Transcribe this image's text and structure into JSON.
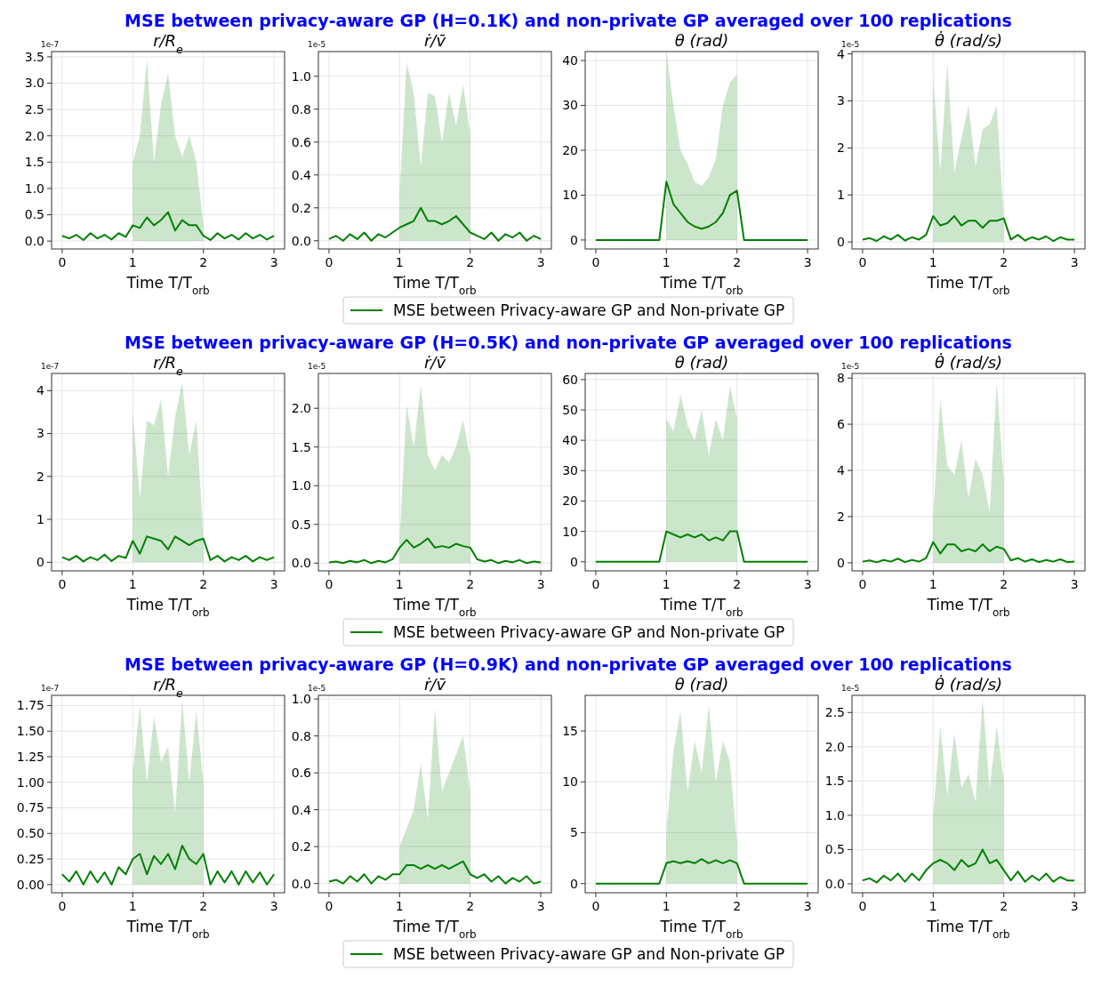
{
  "chart_data": [
    {
      "type": "other",
      "title": "MSE between privacy-aware GP (H=0.1K) and non-private GP averaged over 100 replications"
    },
    {
      "type": "line",
      "title": "r/R$_{e}$",
      "xlabel": "Time T/T$_{orb}$",
      "annotations": [
        "1e-7"
      ],
      "grid": true,
      "xlim": [
        -0.15,
        3.15
      ],
      "xticks": [
        0,
        1,
        2,
        3
      ],
      "ylim": [
        -0.15,
        3.6
      ],
      "yticks": [
        {
          "value": 0,
          "label": "0.0"
        },
        0.5,
        {
          "value": 1,
          "label": "1.0"
        },
        1.5,
        {
          "value": 2,
          "label": "2.0"
        },
        2.5,
        {
          "value": 3,
          "label": "3.0"
        },
        3.5
      ],
      "x": [
        0,
        0.1,
        0.2,
        0.3,
        0.4,
        0.5,
        0.6,
        0.7,
        0.8,
        0.9,
        1,
        1.1,
        1.2,
        1.3,
        1.4,
        1.5,
        1.6,
        1.7,
        1.8,
        1.9,
        2,
        2.1,
        2.2,
        2.3,
        2.4,
        2.5,
        2.6,
        2.7,
        2.8,
        2.9,
        3
      ],
      "series": [
        {
          "color": "#008000",
          "values": [
            0.1,
            0.05,
            0.12,
            0.02,
            0.15,
            0.05,
            0.12,
            0.03,
            0.15,
            0.08,
            0.3,
            0.25,
            0.45,
            0.3,
            0.4,
            0.55,
            0.2,
            0.4,
            0.3,
            0.3,
            0.1,
            0.02,
            0.15,
            0.05,
            0.12,
            0.03,
            0.15,
            0.05,
            0.12,
            0.03,
            0.1
          ],
          "lower": [
            null,
            null,
            null,
            null,
            null,
            null,
            null,
            null,
            null,
            null,
            0,
            0,
            0,
            0,
            0,
            0,
            0,
            0,
            0,
            0,
            0,
            null,
            null,
            null,
            null,
            null,
            null,
            null,
            null,
            null,
            null
          ],
          "upper": [
            null,
            null,
            null,
            null,
            null,
            null,
            null,
            null,
            null,
            null,
            1.5,
            2.0,
            3.45,
            1.5,
            2.6,
            3.2,
            2.0,
            1.6,
            2.0,
            1.5,
            0.3,
            null,
            null,
            null,
            null,
            null,
            null,
            null,
            null,
            null,
            null
          ]
        }
      ]
    },
    {
      "type": "line",
      "title": "ṙ/v̄",
      "xlabel": "Time T/T$_{orb}$",
      "annotations": [
        "1e-5"
      ],
      "grid": true,
      "legend": "bottom",
      "xlim": [
        -0.15,
        3.15
      ],
      "xticks": [
        0,
        1,
        2,
        3
      ],
      "ylim": [
        -0.05,
        1.15
      ],
      "yticks": [
        {
          "value": 0,
          "label": "0.0"
        },
        0.2,
        0.4,
        0.6,
        0.8,
        {
          "value": 1,
          "label": "1.0"
        }
      ],
      "x": [
        0,
        0.1,
        0.2,
        0.3,
        0.4,
        0.5,
        0.6,
        0.7,
        0.8,
        0.9,
        1,
        1.1,
        1.2,
        1.3,
        1.4,
        1.5,
        1.6,
        1.7,
        1.8,
        1.9,
        2,
        2.1,
        2.2,
        2.3,
        2.4,
        2.5,
        2.6,
        2.7,
        2.8,
        2.9,
        3
      ],
      "series": [
        {
          "name": "MSE between Privacy-aware GP and Non-private GP",
          "color": "#008000",
          "values": [
            0.01,
            0.03,
            0.0,
            0.04,
            0.01,
            0.05,
            0.0,
            0.04,
            0.02,
            0.05,
            0.08,
            0.1,
            0.12,
            0.2,
            0.12,
            0.12,
            0.1,
            0.12,
            0.15,
            0.1,
            0.05,
            0.03,
            0.01,
            0.05,
            0.0,
            0.04,
            0.02,
            0.05,
            0.0,
            0.03,
            0.01
          ],
          "lower": [
            null,
            null,
            null,
            null,
            null,
            null,
            null,
            null,
            null,
            null,
            0,
            0,
            0,
            0,
            0,
            0,
            0,
            0,
            0,
            0,
            0,
            null,
            null,
            null,
            null,
            null,
            null,
            null,
            null,
            null,
            null
          ],
          "upper": [
            null,
            null,
            null,
            null,
            null,
            null,
            null,
            null,
            null,
            null,
            0.3,
            1.08,
            0.9,
            0.45,
            0.9,
            0.88,
            0.6,
            0.9,
            0.7,
            0.95,
            0.65,
            null,
            null,
            null,
            null,
            null,
            null,
            null,
            null,
            null,
            null
          ]
        }
      ]
    },
    {
      "type": "line",
      "title": "θ (rad)",
      "xlabel": "Time T/T$_{orb}$",
      "grid": true,
      "xlim": [
        -0.15,
        3.15
      ],
      "xticks": [
        0,
        1,
        2,
        3
      ],
      "ylim": [
        -2,
        42
      ],
      "yticks": [
        0,
        10,
        20,
        30,
        40
      ],
      "x": [
        0,
        0.1,
        0.2,
        0.3,
        0.4,
        0.5,
        0.6,
        0.7,
        0.8,
        0.9,
        1,
        1.1,
        1.2,
        1.3,
        1.4,
        1.5,
        1.6,
        1.7,
        1.8,
        1.9,
        2,
        2.1,
        2.2,
        2.3,
        2.4,
        2.5,
        2.6,
        2.7,
        2.8,
        2.9,
        3
      ],
      "series": [
        {
          "color": "#008000",
          "values": [
            0,
            0,
            0,
            0,
            0,
            0,
            0,
            0,
            0,
            0,
            13,
            8,
            6,
            4,
            3,
            2.5,
            3,
            4,
            6,
            10,
            11,
            0,
            0,
            0,
            0,
            0,
            0,
            0,
            0,
            0,
            0
          ],
          "lower": [
            null,
            null,
            null,
            null,
            null,
            null,
            null,
            null,
            null,
            null,
            0,
            0,
            0,
            0,
            0,
            0,
            0,
            0,
            0,
            0,
            0,
            null,
            null,
            null,
            null,
            null,
            null,
            null,
            null,
            null,
            null
          ],
          "upper": [
            null,
            null,
            null,
            null,
            null,
            null,
            null,
            null,
            null,
            null,
            42,
            30,
            20,
            17,
            13,
            12,
            14,
            18,
            30,
            35,
            37,
            null,
            null,
            null,
            null,
            null,
            null,
            null,
            null,
            null,
            null
          ]
        }
      ]
    },
    {
      "type": "line",
      "title": "θ̇ (rad/s)",
      "xlabel": "Time T/T$_{orb}$",
      "annotations": [
        "1e-5"
      ],
      "grid": true,
      "xlim": [
        -0.15,
        3.15
      ],
      "xticks": [
        0,
        1,
        2,
        3
      ],
      "ylim": [
        -0.15,
        4.05
      ],
      "yticks": [
        0,
        1,
        2,
        3,
        4
      ],
      "x": [
        0,
        0.1,
        0.2,
        0.3,
        0.4,
        0.5,
        0.6,
        0.7,
        0.8,
        0.9,
        1,
        1.1,
        1.2,
        1.3,
        1.4,
        1.5,
        1.6,
        1.7,
        1.8,
        1.9,
        2,
        2.1,
        2.2,
        2.3,
        2.4,
        2.5,
        2.6,
        2.7,
        2.8,
        2.9,
        3
      ],
      "series": [
        {
          "color": "#008000",
          "values": [
            0.05,
            0.08,
            0.02,
            0.12,
            0.05,
            0.15,
            0.03,
            0.1,
            0.05,
            0.15,
            0.55,
            0.35,
            0.4,
            0.55,
            0.35,
            0.45,
            0.45,
            0.3,
            0.45,
            0.45,
            0.5,
            0.05,
            0.15,
            0.03,
            0.1,
            0.05,
            0.12,
            0.02,
            0.1,
            0.05,
            0.05
          ],
          "lower": [
            null,
            null,
            null,
            null,
            null,
            null,
            null,
            null,
            null,
            null,
            0,
            0,
            0,
            0,
            0,
            0,
            0,
            0,
            0,
            0,
            0,
            null,
            null,
            null,
            null,
            null,
            null,
            null,
            null,
            null,
            null
          ],
          "upper": [
            null,
            null,
            null,
            null,
            null,
            null,
            null,
            null,
            null,
            null,
            3.5,
            1.5,
            3.8,
            1.5,
            2.2,
            2.9,
            1.6,
            2.4,
            2.5,
            2.9,
            0.5,
            null,
            null,
            null,
            null,
            null,
            null,
            null,
            null,
            null,
            null
          ]
        }
      ]
    },
    {
      "type": "other",
      "title": "MSE between privacy-aware GP (H=0.5K) and non-private GP averaged over 100 replications"
    },
    {
      "type": "line",
      "title": "r/R$_{e}$",
      "xlabel": "Time T/T$_{orb}$",
      "annotations": [
        "1e-7"
      ],
      "grid": true,
      "xlim": [
        -0.15,
        3.15
      ],
      "xticks": [
        0,
        1,
        2,
        3
      ],
      "ylim": [
        -0.2,
        4.4
      ],
      "yticks": [
        0,
        1,
        2,
        3,
        4
      ],
      "x": [
        0,
        0.1,
        0.2,
        0.3,
        0.4,
        0.5,
        0.6,
        0.7,
        0.8,
        0.9,
        1,
        1.1,
        1.2,
        1.3,
        1.4,
        1.5,
        1.6,
        1.7,
        1.8,
        1.9,
        2,
        2.1,
        2.2,
        2.3,
        2.4,
        2.5,
        2.6,
        2.7,
        2.8,
        2.9,
        3
      ],
      "series": [
        {
          "color": "#008000",
          "values": [
            0.12,
            0.05,
            0.15,
            0.02,
            0.12,
            0.05,
            0.18,
            0.03,
            0.15,
            0.1,
            0.5,
            0.2,
            0.6,
            0.55,
            0.5,
            0.3,
            0.6,
            0.5,
            0.4,
            0.5,
            0.55,
            0.05,
            0.15,
            0.02,
            0.12,
            0.05,
            0.15,
            0.02,
            0.12,
            0.05,
            0.12
          ],
          "lower": [
            null,
            null,
            null,
            null,
            null,
            null,
            null,
            null,
            null,
            null,
            0,
            0,
            0,
            0,
            0,
            0,
            0,
            0,
            0,
            0,
            0,
            null,
            null,
            null,
            null,
            null,
            null,
            null,
            null,
            null,
            null
          ],
          "upper": [
            null,
            null,
            null,
            null,
            null,
            null,
            null,
            null,
            null,
            null,
            3.5,
            1.5,
            3.3,
            3.2,
            3.8,
            2.0,
            3.4,
            4.2,
            2.5,
            3.3,
            0.6,
            null,
            null,
            null,
            null,
            null,
            null,
            null,
            null,
            null,
            null
          ]
        }
      ]
    },
    {
      "type": "line",
      "title": "ṙ/v̄",
      "xlabel": "Time T/T$_{orb}$",
      "annotations": [
        "1e-5"
      ],
      "grid": true,
      "legend": "bottom",
      "xlim": [
        -0.15,
        3.15
      ],
      "xticks": [
        0,
        1,
        2,
        3
      ],
      "ylim": [
        -0.1,
        2.45
      ],
      "yticks": [
        {
          "value": 0,
          "label": "0.0"
        },
        0.5,
        {
          "value": 1,
          "label": "1.0"
        },
        1.5,
        {
          "value": 2,
          "label": "2.0"
        }
      ],
      "x": [
        0,
        0.1,
        0.2,
        0.3,
        0.4,
        0.5,
        0.6,
        0.7,
        0.8,
        0.9,
        1,
        1.1,
        1.2,
        1.3,
        1.4,
        1.5,
        1.6,
        1.7,
        1.8,
        1.9,
        2,
        2.1,
        2.2,
        2.3,
        2.4,
        2.5,
        2.6,
        2.7,
        2.8,
        2.9,
        3
      ],
      "series": [
        {
          "name": "MSE between Privacy-aware GP and Non-private GP",
          "color": "#008000",
          "values": [
            0.01,
            0.02,
            0.0,
            0.03,
            0.01,
            0.04,
            0.0,
            0.03,
            0.01,
            0.05,
            0.2,
            0.3,
            0.2,
            0.25,
            0.32,
            0.2,
            0.22,
            0.2,
            0.25,
            0.22,
            0.2,
            0.05,
            0.02,
            0.04,
            0.0,
            0.03,
            0.01,
            0.04,
            0.0,
            0.02,
            0.01
          ],
          "lower": [
            null,
            null,
            null,
            null,
            null,
            null,
            null,
            null,
            null,
            null,
            0,
            0,
            0,
            0,
            0,
            0,
            0,
            0,
            0,
            0,
            0,
            null,
            null,
            null,
            null,
            null,
            null,
            null,
            null,
            null,
            null
          ],
          "upper": [
            null,
            null,
            null,
            null,
            null,
            null,
            null,
            null,
            null,
            null,
            0.3,
            2.05,
            1.5,
            2.3,
            1.4,
            1.2,
            1.4,
            1.3,
            1.5,
            1.85,
            1.35,
            null,
            null,
            null,
            null,
            null,
            null,
            null,
            null,
            null,
            null
          ]
        }
      ]
    },
    {
      "type": "line",
      "title": "θ (rad)",
      "xlabel": "Time T/T$_{orb}$",
      "grid": true,
      "xlim": [
        -0.15,
        3.15
      ],
      "xticks": [
        0,
        1,
        2,
        3
      ],
      "ylim": [
        -3,
        62
      ],
      "yticks": [
        0,
        10,
        20,
        30,
        40,
        50,
        60
      ],
      "x": [
        0,
        0.1,
        0.2,
        0.3,
        0.4,
        0.5,
        0.6,
        0.7,
        0.8,
        0.9,
        1,
        1.1,
        1.2,
        1.3,
        1.4,
        1.5,
        1.6,
        1.7,
        1.8,
        1.9,
        2,
        2.1,
        2.2,
        2.3,
        2.4,
        2.5,
        2.6,
        2.7,
        2.8,
        2.9,
        3
      ],
      "series": [
        {
          "color": "#008000",
          "values": [
            0,
            0,
            0,
            0,
            0,
            0,
            0,
            0,
            0,
            0,
            10,
            9,
            8,
            9,
            8,
            9,
            7,
            8,
            7,
            10,
            10,
            0,
            0,
            0,
            0,
            0,
            0,
            0,
            0,
            0,
            0
          ],
          "lower": [
            null,
            null,
            null,
            null,
            null,
            null,
            null,
            null,
            null,
            null,
            0,
            0,
            0,
            0,
            0,
            0,
            0,
            0,
            0,
            0,
            0,
            null,
            null,
            null,
            null,
            null,
            null,
            null,
            null,
            null,
            null
          ],
          "upper": [
            null,
            null,
            null,
            null,
            null,
            null,
            null,
            null,
            null,
            null,
            47,
            43,
            55,
            45,
            40,
            50,
            35,
            47,
            40,
            58,
            47,
            null,
            null,
            null,
            null,
            null,
            null,
            null,
            null,
            null,
            null
          ]
        }
      ]
    },
    {
      "type": "line",
      "title": "θ̇ (rad/s)",
      "xlabel": "Time T/T$_{orb}$",
      "annotations": [
        "1e-5"
      ],
      "grid": true,
      "xlim": [
        -0.15,
        3.15
      ],
      "xticks": [
        0,
        1,
        2,
        3
      ],
      "ylim": [
        -0.35,
        8.2
      ],
      "yticks": [
        0,
        2,
        4,
        6,
        8
      ],
      "x": [
        0,
        0.1,
        0.2,
        0.3,
        0.4,
        0.5,
        0.6,
        0.7,
        0.8,
        0.9,
        1,
        1.1,
        1.2,
        1.3,
        1.4,
        1.5,
        1.6,
        1.7,
        1.8,
        1.9,
        2,
        2.1,
        2.2,
        2.3,
        2.4,
        2.5,
        2.6,
        2.7,
        2.8,
        2.9,
        3
      ],
      "series": [
        {
          "color": "#008000",
          "values": [
            0.05,
            0.1,
            0.02,
            0.12,
            0.05,
            0.18,
            0.03,
            0.12,
            0.05,
            0.2,
            0.9,
            0.4,
            0.8,
            0.8,
            0.5,
            0.6,
            0.5,
            0.8,
            0.5,
            0.7,
            0.6,
            0.1,
            0.2,
            0.05,
            0.15,
            0.03,
            0.12,
            0.05,
            0.15,
            0.03,
            0.05
          ],
          "lower": [
            null,
            null,
            null,
            null,
            null,
            null,
            null,
            null,
            null,
            null,
            0,
            0,
            0,
            0,
            0,
            0,
            0,
            0,
            0,
            0,
            0,
            null,
            null,
            null,
            null,
            null,
            null,
            null,
            null,
            null,
            null
          ],
          "upper": [
            null,
            null,
            null,
            null,
            null,
            null,
            null,
            null,
            null,
            null,
            2,
            7.1,
            4.2,
            3.8,
            5.3,
            2.8,
            4.5,
            3.8,
            2.2,
            7.8,
            3.5,
            null,
            null,
            null,
            null,
            null,
            null,
            null,
            null,
            null,
            null
          ]
        }
      ]
    },
    {
      "type": "other",
      "title": "MSE between privacy-aware GP (H=0.9K) and non-private GP averaged over 100 replications"
    },
    {
      "type": "line",
      "title": "r/R$_{e}$",
      "xlabel": "Time T/T$_{orb}$",
      "annotations": [
        "1e-7"
      ],
      "grid": true,
      "xlim": [
        -0.15,
        3.15
      ],
      "xticks": [
        0,
        1,
        2,
        3
      ],
      "ylim": [
        -0.08,
        1.85
      ],
      "yticks": [
        {
          "value": 0,
          "label": "0.00"
        },
        0.25,
        {
          "value": 0.5,
          "label": "0.50"
        },
        0.75,
        {
          "value": 1,
          "label": "1.00"
        },
        1.25,
        {
          "value": 1.5,
          "label": "1.50"
        },
        1.75
      ],
      "x": [
        0,
        0.1,
        0.2,
        0.3,
        0.4,
        0.5,
        0.6,
        0.7,
        0.8,
        0.9,
        1,
        1.1,
        1.2,
        1.3,
        1.4,
        1.5,
        1.6,
        1.7,
        1.8,
        1.9,
        2,
        2.1,
        2.2,
        2.3,
        2.4,
        2.5,
        2.6,
        2.7,
        2.8,
        2.9,
        3
      ],
      "series": [
        {
          "color": "#008000",
          "values": [
            0.1,
            0.03,
            0.13,
            0.0,
            0.13,
            0.02,
            0.12,
            0.0,
            0.17,
            0.1,
            0.25,
            0.3,
            0.1,
            0.28,
            0.2,
            0.3,
            0.15,
            0.38,
            0.25,
            0.2,
            0.3,
            0.0,
            0.13,
            0.02,
            0.13,
            0.0,
            0.13,
            0.02,
            0.12,
            0.0,
            0.1
          ],
          "lower": [
            null,
            null,
            null,
            null,
            null,
            null,
            null,
            null,
            null,
            null,
            0,
            0,
            0,
            0,
            0,
            0,
            0,
            0,
            0,
            0,
            0,
            null,
            null,
            null,
            null,
            null,
            null,
            null,
            null,
            null,
            null
          ],
          "upper": [
            null,
            null,
            null,
            null,
            null,
            null,
            null,
            null,
            null,
            null,
            1.1,
            1.75,
            1.0,
            1.65,
            1.2,
            1.35,
            0.7,
            1.8,
            1.0,
            1.7,
            1.0,
            null,
            null,
            null,
            null,
            null,
            null,
            null,
            null,
            null,
            null
          ]
        }
      ]
    },
    {
      "type": "line",
      "title": "ṙ/v̄",
      "xlabel": "Time T/T$_{orb}$",
      "annotations": [
        "1e-5"
      ],
      "grid": true,
      "legend": "bottom",
      "xlim": [
        -0.15,
        3.15
      ],
      "xticks": [
        0,
        1,
        2,
        3
      ],
      "ylim": [
        -0.05,
        1.02
      ],
      "yticks": [
        {
          "value": 0,
          "label": "0.0"
        },
        0.2,
        0.4,
        0.6,
        0.8,
        {
          "value": 1,
          "label": "1.0"
        }
      ],
      "x": [
        0,
        0.1,
        0.2,
        0.3,
        0.4,
        0.5,
        0.6,
        0.7,
        0.8,
        0.9,
        1,
        1.1,
        1.2,
        1.3,
        1.4,
        1.5,
        1.6,
        1.7,
        1.8,
        1.9,
        2,
        2.1,
        2.2,
        2.3,
        2.4,
        2.5,
        2.6,
        2.7,
        2.8,
        2.9,
        3
      ],
      "series": [
        {
          "name": "MSE between Privacy-aware GP and Non-private GP",
          "color": "#008000",
          "values": [
            0.01,
            0.02,
            0.0,
            0.04,
            0.01,
            0.05,
            0.0,
            0.04,
            0.02,
            0.05,
            0.05,
            0.1,
            0.1,
            0.08,
            0.1,
            0.08,
            0.1,
            0.08,
            0.1,
            0.12,
            0.05,
            0.03,
            0.05,
            0.01,
            0.04,
            0.0,
            0.03,
            0.01,
            0.04,
            0.0,
            0.01
          ],
          "lower": [
            null,
            null,
            null,
            null,
            null,
            null,
            null,
            null,
            null,
            null,
            0,
            0,
            0,
            0,
            0,
            0,
            0,
            0,
            0,
            0,
            0,
            null,
            null,
            null,
            null,
            null,
            null,
            null,
            null,
            null,
            null
          ],
          "upper": [
            null,
            null,
            null,
            null,
            null,
            null,
            null,
            null,
            null,
            null,
            0.2,
            0.3,
            0.4,
            0.65,
            0.35,
            0.95,
            0.5,
            0.6,
            0.7,
            0.8,
            0.5,
            null,
            null,
            null,
            null,
            null,
            null,
            null,
            null,
            null,
            null
          ]
        }
      ]
    },
    {
      "type": "line",
      "title": "θ (rad)",
      "xlabel": "Time T/T$_{orb}$",
      "grid": true,
      "xlim": [
        -0.15,
        3.15
      ],
      "xticks": [
        0,
        1,
        2,
        3
      ],
      "ylim": [
        -0.9,
        18.5
      ],
      "yticks": [
        0,
        5,
        10,
        15
      ],
      "x": [
        0,
        0.1,
        0.2,
        0.3,
        0.4,
        0.5,
        0.6,
        0.7,
        0.8,
        0.9,
        1,
        1.1,
        1.2,
        1.3,
        1.4,
        1.5,
        1.6,
        1.7,
        1.8,
        1.9,
        2,
        2.1,
        2.2,
        2.3,
        2.4,
        2.5,
        2.6,
        2.7,
        2.8,
        2.9,
        3
      ],
      "series": [
        {
          "color": "#008000",
          "values": [
            0,
            0,
            0,
            0,
            0,
            0,
            0,
            0,
            0,
            0,
            2,
            2.2,
            2,
            2.2,
            2,
            2.4,
            2,
            2.3,
            2,
            2.3,
            2,
            0,
            0,
            0,
            0,
            0,
            0,
            0,
            0,
            0,
            0
          ],
          "lower": [
            null,
            null,
            null,
            null,
            null,
            null,
            null,
            null,
            null,
            null,
            0,
            0,
            0,
            0,
            0,
            0,
            0,
            0,
            0,
            0,
            0,
            null,
            null,
            null,
            null,
            null,
            null,
            null,
            null,
            null,
            null
          ],
          "upper": [
            null,
            null,
            null,
            null,
            null,
            null,
            null,
            null,
            null,
            null,
            5,
            13,
            17,
            9,
            14,
            11,
            17.5,
            10,
            14,
            12,
            4,
            null,
            null,
            null,
            null,
            null,
            null,
            null,
            null,
            null,
            null
          ]
        }
      ]
    },
    {
      "type": "line",
      "title": "θ̇ (rad/s)",
      "xlabel": "Time T/T$_{orb}$",
      "annotations": [
        "1e-5"
      ],
      "grid": true,
      "xlim": [
        -0.15,
        3.15
      ],
      "xticks": [
        0,
        1,
        2,
        3
      ],
      "ylim": [
        -0.13,
        2.75
      ],
      "yticks": [
        {
          "value": 0,
          "label": "0.0"
        },
        0.5,
        {
          "value": 1,
          "label": "1.0"
        },
        1.5,
        {
          "value": 2,
          "label": "2.0"
        },
        2.5
      ],
      "x": [
        0,
        0.1,
        0.2,
        0.3,
        0.4,
        0.5,
        0.6,
        0.7,
        0.8,
        0.9,
        1,
        1.1,
        1.2,
        1.3,
        1.4,
        1.5,
        1.6,
        1.7,
        1.8,
        1.9,
        2,
        2.1,
        2.2,
        2.3,
        2.4,
        2.5,
        2.6,
        2.7,
        2.8,
        2.9,
        3
      ],
      "series": [
        {
          "color": "#008000",
          "values": [
            0.05,
            0.08,
            0.02,
            0.12,
            0.05,
            0.15,
            0.03,
            0.15,
            0.05,
            0.2,
            0.3,
            0.35,
            0.3,
            0.2,
            0.35,
            0.25,
            0.3,
            0.5,
            0.3,
            0.35,
            0.2,
            0.05,
            0.18,
            0.03,
            0.12,
            0.05,
            0.15,
            0.03,
            0.1,
            0.05,
            0.05
          ],
          "lower": [
            null,
            null,
            null,
            null,
            null,
            null,
            null,
            null,
            null,
            null,
            0,
            0,
            0,
            0,
            0,
            0,
            0,
            0,
            0,
            0,
            0,
            null,
            null,
            null,
            null,
            null,
            null,
            null,
            null,
            null,
            null
          ],
          "upper": [
            null,
            null,
            null,
            null,
            null,
            null,
            null,
            null,
            null,
            null,
            1,
            2.3,
            1.3,
            2.2,
            1.4,
            1.6,
            1.2,
            2.7,
            1.4,
            2.3,
            1.5,
            null,
            null,
            null,
            null,
            null,
            null,
            null,
            null,
            null,
            null
          ]
        }
      ]
    }
  ]
}
